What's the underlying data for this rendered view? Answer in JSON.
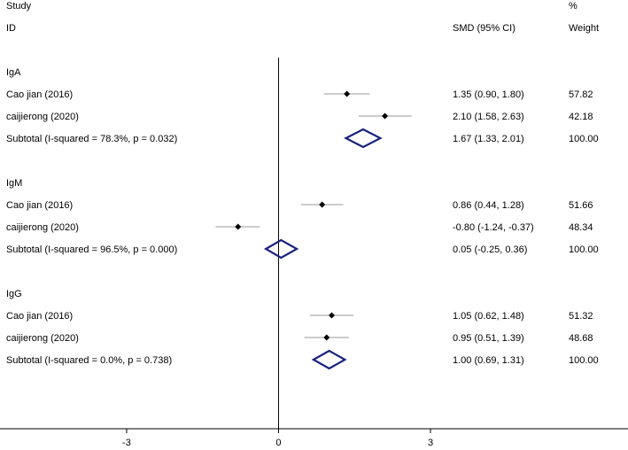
{
  "headers": {
    "study_top": "Study",
    "study_id": "ID",
    "effect": "SMD (95% CI)",
    "weight_top": "%",
    "weight": "Weight"
  },
  "chart_data": {
    "type": "forest",
    "effect_measure": "SMD",
    "x_ticks": [
      -3,
      0,
      3
    ],
    "x_ticks_labels": [
      "-3",
      "0",
      "3"
    ],
    "xlim": [
      -5.5,
      6.9
    ],
    "null_line": 0,
    "groups": [
      {
        "name": "IgA",
        "studies": [
          {
            "label": "Cao jian (2016)",
            "est": 1.35,
            "lo": 0.9,
            "hi": 1.8,
            "ci_text": "1.35 (0.90, 1.80)",
            "weight": "57.82"
          },
          {
            "label": "caijierong (2020)",
            "est": 2.1,
            "lo": 1.58,
            "hi": 2.63,
            "ci_text": "2.10 (1.58, 2.63)",
            "weight": "42.18"
          }
        ],
        "subtotal": {
          "label": "Subtotal  (I-squared = 78.3%, p = 0.032)",
          "est": 1.67,
          "lo": 1.33,
          "hi": 2.01,
          "ci_text": "1.67 (1.33, 2.01)",
          "weight": "100.00"
        }
      },
      {
        "name": "IgM",
        "studies": [
          {
            "label": "Cao jian (2016)",
            "est": 0.86,
            "lo": 0.44,
            "hi": 1.28,
            "ci_text": "0.86 (0.44, 1.28)",
            "weight": "51.66"
          },
          {
            "label": "caijierong (2020)",
            "est": -0.8,
            "lo": -1.24,
            "hi": -0.37,
            "ci_text": "-0.80 (-1.24, -0.37)",
            "weight": "48.34"
          }
        ],
        "subtotal": {
          "label": "Subtotal  (I-squared = 96.5%, p = 0.000)",
          "est": 0.05,
          "lo": -0.25,
          "hi": 0.36,
          "ci_text": "0.05 (-0.25, 0.36)",
          "weight": "100.00"
        }
      },
      {
        "name": "IgG",
        "studies": [
          {
            "label": "Cao jian (2016)",
            "est": 1.05,
            "lo": 0.62,
            "hi": 1.48,
            "ci_text": "1.05 (0.62, 1.48)",
            "weight": "51.32"
          },
          {
            "label": "caijierong (2020)",
            "est": 0.95,
            "lo": 0.51,
            "hi": 1.39,
            "ci_text": "0.95 (0.51, 1.39)",
            "weight": "48.68"
          }
        ],
        "subtotal": {
          "label": "Subtotal  (I-squared = 0.0%, p = 0.738)",
          "est": 1.0,
          "lo": 0.69,
          "hi": 1.31,
          "ci_text": "1.00 (0.69, 1.31)",
          "weight": "100.00"
        }
      }
    ],
    "colors": {
      "point": "#000000",
      "ci_line": "#999999",
      "diamond": "#1a237e",
      "axis": "#000000"
    }
  }
}
